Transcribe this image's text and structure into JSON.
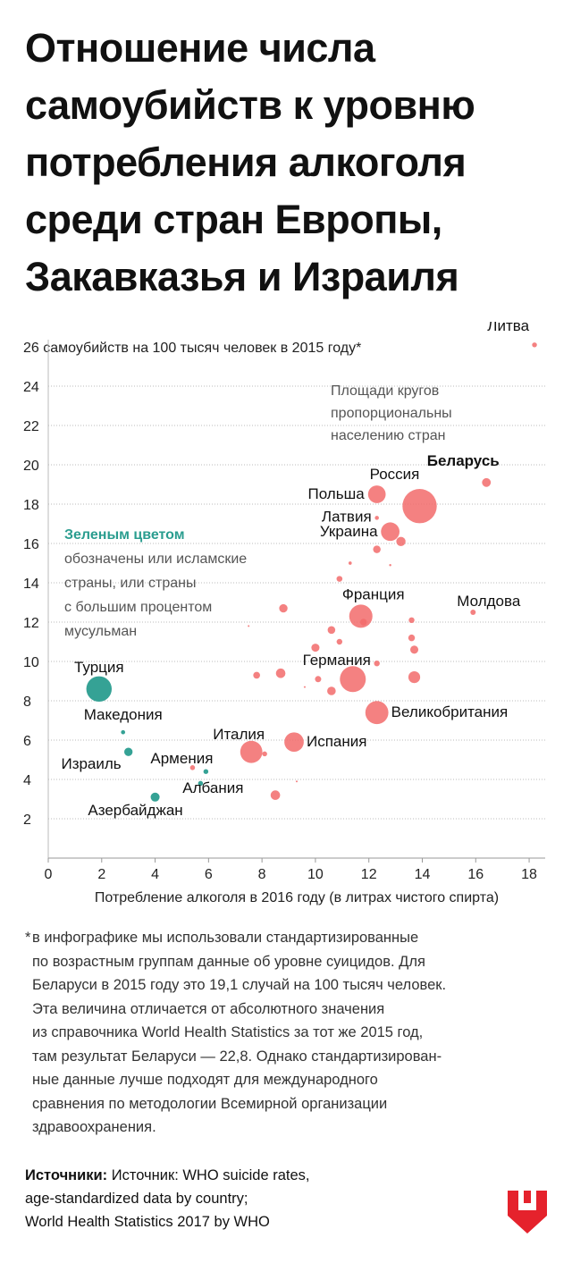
{
  "title": "Отношение числа самоубийств к уровню потребления алкоголя среди стран Европы, Закавказья и Израиля",
  "chart_data": {
    "type": "scatter",
    "title": "Отношение числа самоубийств к уровню потребления алкоголя среди стран Европы, Закавказья и Израиля",
    "ylabel": "26 самоубийств на 100 тысяч человек в 2015 году*",
    "xlabel": "Потребление алкоголя в 2016 году (в литрах чистого спирта)",
    "xlim": [
      0,
      18.6
    ],
    "ylim": [
      0,
      26
    ],
    "x_ticks": [
      "0",
      "2",
      "4",
      "6",
      "8",
      "10",
      "12",
      "14",
      "16",
      "18"
    ],
    "y_ticks": [
      "2",
      "4",
      "6",
      "8",
      "10",
      "12",
      "14",
      "16",
      "18",
      "20",
      "22",
      "24"
    ],
    "grid": "horizontal",
    "size_note": "Площади кругов пропорциональны населению стран",
    "color_note": {
      "highlight": "Зеленым цветом",
      "rest": "обозначены или исламские страны, или страны с большим процентом мусульман"
    },
    "colors": {
      "other": "#f26b6b",
      "muslim": "#2a9d8f",
      "grid": "#bbbbbb"
    },
    "points": [
      {
        "label": "Литва",
        "x": 18.2,
        "y": 26.1,
        "pop": 2.9,
        "group": "other"
      },
      {
        "label": "Беларусь",
        "x": 16.4,
        "y": 19.1,
        "pop": 9.5,
        "group": "other",
        "emphasis": true
      },
      {
        "label": "Россия",
        "x": 13.9,
        "y": 17.9,
        "pop": 144,
        "group": "other"
      },
      {
        "label": "Польша",
        "x": 12.3,
        "y": 18.5,
        "pop": 38,
        "group": "other"
      },
      {
        "label": "Латвия",
        "x": 12.3,
        "y": 17.3,
        "pop": 2.0,
        "group": "other"
      },
      {
        "label": "Украина",
        "x": 12.8,
        "y": 16.6,
        "pop": 42,
        "group": "other"
      },
      {
        "label": "Молдова",
        "x": 15.9,
        "y": 12.5,
        "pop": 3.5,
        "group": "other"
      },
      {
        "label": "Франция",
        "x": 11.7,
        "y": 12.3,
        "pop": 66,
        "group": "other"
      },
      {
        "label": "Германия",
        "x": 11.4,
        "y": 9.1,
        "pop": 82,
        "group": "other"
      },
      {
        "label": "Великобритания",
        "x": 12.3,
        "y": 7.4,
        "pop": 65,
        "group": "other"
      },
      {
        "label": "Италия",
        "x": 7.6,
        "y": 5.4,
        "pop": 60,
        "group": "other"
      },
      {
        "label": "Испания",
        "x": 9.2,
        "y": 5.9,
        "pop": 46,
        "group": "other"
      },
      {
        "label": "Армения",
        "x": 5.4,
        "y": 4.6,
        "pop": 3.0,
        "group": "other"
      },
      {
        "label": "Турция",
        "x": 1.9,
        "y": 8.6,
        "pop": 79,
        "group": "muslim"
      },
      {
        "label": "Македония",
        "x": 2.8,
        "y": 6.4,
        "pop": 2.1,
        "group": "muslim"
      },
      {
        "label": "Израиль",
        "x": 3.0,
        "y": 5.4,
        "pop": 8.5,
        "group": "muslim"
      },
      {
        "label": "Албания",
        "x": 5.9,
        "y": 4.4,
        "pop": 2.9,
        "group": "muslim"
      },
      {
        "label": "Азербайджан",
        "x": 4.0,
        "y": 3.1,
        "pop": 9.8,
        "group": "muslim"
      },
      {
        "label": "",
        "x": 5.7,
        "y": 3.8,
        "pop": 3.0,
        "group": "muslim"
      },
      {
        "label": "",
        "x": 13.2,
        "y": 16.1,
        "pop": 10.5,
        "group": "other"
      },
      {
        "label": "",
        "x": 12.3,
        "y": 15.7,
        "pop": 7.0,
        "group": "other"
      },
      {
        "label": "",
        "x": 11.3,
        "y": 15.0,
        "pop": 1.3,
        "group": "other"
      },
      {
        "label": "",
        "x": 12.8,
        "y": 14.9,
        "pop": 0.6,
        "group": "other"
      },
      {
        "label": "",
        "x": 10.9,
        "y": 14.2,
        "pop": 4.2,
        "group": "other"
      },
      {
        "label": "",
        "x": 8.8,
        "y": 12.7,
        "pop": 8.5,
        "group": "other"
      },
      {
        "label": "",
        "x": 7.5,
        "y": 11.8,
        "pop": 0.3,
        "group": "other"
      },
      {
        "label": "",
        "x": 13.6,
        "y": 12.1,
        "pop": 4.0,
        "group": "other"
      },
      {
        "label": "",
        "x": 11.8,
        "y": 12.0,
        "pop": 5.5,
        "group": "other"
      },
      {
        "label": "",
        "x": 10.6,
        "y": 11.6,
        "pop": 7.2,
        "group": "other"
      },
      {
        "label": "",
        "x": 10.9,
        "y": 11.0,
        "pop": 4.0,
        "group": "other"
      },
      {
        "label": "",
        "x": 13.6,
        "y": 11.2,
        "pop": 5.4,
        "group": "other"
      },
      {
        "label": "",
        "x": 13.7,
        "y": 10.6,
        "pop": 8.0,
        "group": "other"
      },
      {
        "label": "",
        "x": 10.0,
        "y": 10.7,
        "pop": 8.0,
        "group": "other"
      },
      {
        "label": "",
        "x": 12.3,
        "y": 9.9,
        "pop": 4.0,
        "group": "other"
      },
      {
        "label": "",
        "x": 8.7,
        "y": 9.4,
        "pop": 11.0,
        "group": "other"
      },
      {
        "label": "",
        "x": 7.8,
        "y": 9.3,
        "pop": 5.7,
        "group": "other"
      },
      {
        "label": "",
        "x": 13.7,
        "y": 9.2,
        "pop": 17.0,
        "group": "other"
      },
      {
        "label": "",
        "x": 10.1,
        "y": 9.1,
        "pop": 4.8,
        "group": "other"
      },
      {
        "label": "",
        "x": 9.6,
        "y": 8.7,
        "pop": 0.4,
        "group": "other"
      },
      {
        "label": "",
        "x": 10.6,
        "y": 8.5,
        "pop": 9.0,
        "group": "other"
      },
      {
        "label": "",
        "x": 8.1,
        "y": 5.3,
        "pop": 3.0,
        "group": "other"
      },
      {
        "label": "",
        "x": 9.3,
        "y": 3.9,
        "pop": 0.4,
        "group": "other"
      },
      {
        "label": "",
        "x": 8.5,
        "y": 3.2,
        "pop": 11.0,
        "group": "other"
      }
    ]
  },
  "footnote": {
    "star": "*",
    "text": "в инфографике мы использовали стандартизированные\nпо возрастным группам данные об уровне суицидов. Для\nБеларуси в 2015 году это 19,1 случай на 100 тысяч человек.\nЭта величина отличается от абсолютного значения\nиз справочника World Health Statistics за тот же 2015 год,\nтам результат Беларуси — 22,8. Однако стандартизирован-\nные данные лучше подходят для международного\nсравнения по методологии Всемирной организации\nздравоохранения."
  },
  "sources": {
    "label": "Источники:",
    "lines": [
      "Источник: WHO suicide rates,",
      "age-standardized data by country;",
      "World Health Statistics 2017 by WHO"
    ]
  },
  "logo": {
    "name": "logo-icon",
    "color": "#e5222c"
  }
}
